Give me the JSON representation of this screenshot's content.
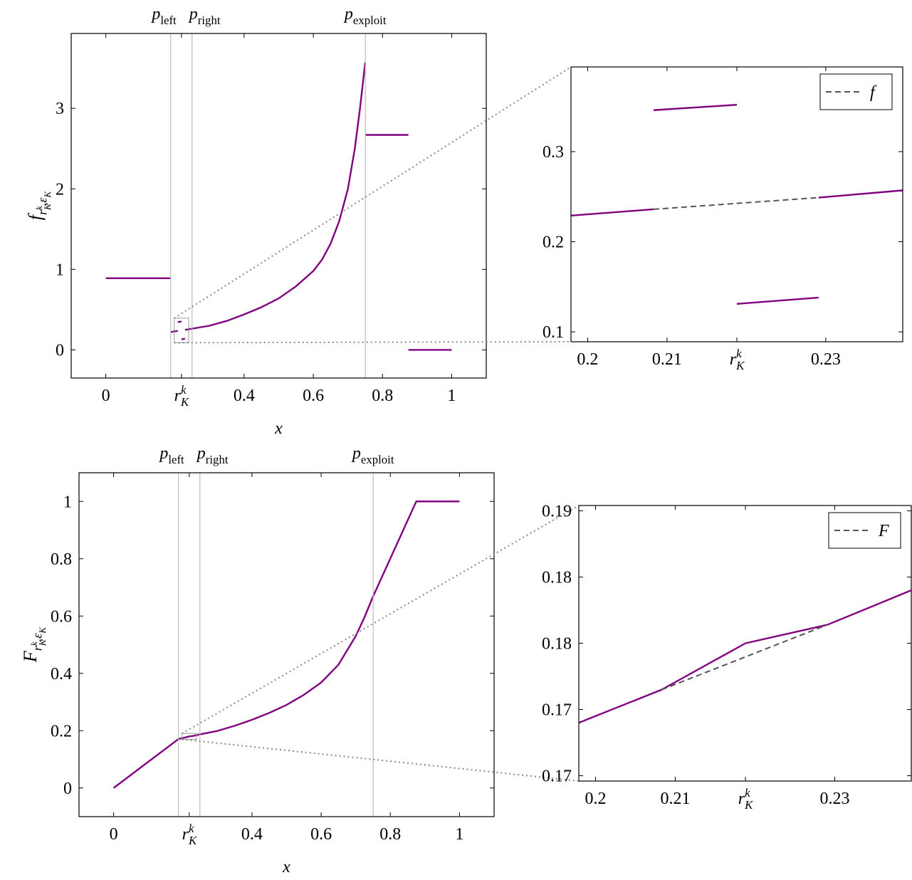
{
  "chart_data": [
    {
      "type": "line",
      "xlim": [
        -0.1,
        1.1
      ],
      "ylim": [
        -0.35,
        3.93
      ],
      "xticks": [
        0,
        {
          "value": 0.2188,
          "label": [
            {
              "text": "r"
            },
            {
              "text": "K",
              "pos": "sub"
            },
            {
              "text": "k",
              "pos": "sup"
            }
          ]
        },
        0.4,
        0.6,
        0.8,
        1
      ],
      "yticks": [
        0,
        1,
        2,
        3
      ],
      "xlabel": "x",
      "ylabel": [
        {
          "text": "f"
        },
        {
          "text": "r",
          "pos": "sub"
        },
        {
          "text": "K",
          "pos": "subsub"
        },
        {
          "text": "k",
          "pos": "subsup"
        },
        {
          "text": ",",
          "pos": "sub"
        },
        {
          "text": "ε",
          "pos": "sub"
        },
        {
          "text": "K",
          "pos": "subsub"
        }
      ],
      "vlines": [
        {
          "x": 0.1876,
          "label": [
            {
              "text": "p"
            },
            {
              "text": "left",
              "pos": "sub"
            }
          ]
        },
        {
          "x": 0.2495,
          "label": [
            {
              "text": "p"
            },
            {
              "text": "right",
              "pos": "sub"
            }
          ]
        },
        {
          "x": 0.7505,
          "label": [
            {
              "text": "p"
            },
            {
              "text": "exploit",
              "pos": "sub"
            }
          ]
        }
      ],
      "series": [
        {
          "color": "#800080",
          "x": [
            0,
            0.1876,
            0.1876,
            0.1876,
            0.2083,
            0.2083,
            0.2083,
            0.2188,
            0.2188,
            0.2188,
            0.2291,
            0.2291,
            0.2291,
            0.3,
            0.35,
            0.4,
            0.45,
            0.5,
            0.55,
            0.6,
            0.625,
            0.65,
            0.675,
            0.7,
            0.72,
            0.735,
            0.75,
            0.75,
            0.75,
            0.875,
            0.875,
            0.875,
            1
          ],
          "values": [
            0.89,
            0.89,
            null,
            0.222,
            0.236,
            null,
            0.346,
            0.352,
            null,
            0.131,
            0.138,
            null,
            0.249,
            0.3,
            0.36,
            0.44,
            0.53,
            0.64,
            0.79,
            0.98,
            1.12,
            1.32,
            1.6,
            2.0,
            2.5,
            3.0,
            3.57,
            null,
            2.67,
            2.67,
            null,
            0,
            0
          ]
        }
      ]
    },
    {
      "type": "line",
      "inset_of": 0,
      "xlim": [
        0.1979,
        0.2397
      ],
      "ylim": [
        0.089,
        0.394
      ],
      "xticks": [
        0.2,
        0.21,
        {
          "value": 0.2188,
          "label": [
            {
              "text": "r"
            },
            {
              "text": "K",
              "pos": "sub"
            },
            {
              "text": "k",
              "pos": "sup"
            }
          ]
        },
        0.23
      ],
      "yticks": [
        0.1,
        0.2,
        0.3
      ],
      "legend": "north east",
      "series": [
        {
          "color": "#800080",
          "x": [
            0.1979,
            0.2083,
            0.2083,
            0.2083,
            0.2188,
            0.2188,
            0.2188,
            0.2291,
            0.2291,
            0.2291,
            0.2397
          ],
          "values": [
            0.229,
            0.236,
            null,
            0.346,
            0.352,
            null,
            0.131,
            0.138,
            null,
            0.249,
            0.257
          ]
        },
        {
          "name": "f",
          "color": "#555555",
          "dashed": true,
          "x": [
            0.2083,
            0.2291
          ],
          "values": [
            0.236,
            0.249
          ]
        }
      ]
    },
    {
      "type": "line",
      "xlim": [
        -0.1,
        1.1
      ],
      "ylim": [
        -0.1,
        1.1
      ],
      "xticks": [
        0,
        {
          "value": 0.2188,
          "label": [
            {
              "text": "r"
            },
            {
              "text": "K",
              "pos": "sub"
            },
            {
              "text": "k",
              "pos": "sup"
            }
          ]
        },
        0.4,
        0.6,
        0.8,
        1
      ],
      "yticks": [
        0,
        0.2,
        0.4,
        0.6,
        0.8,
        1
      ],
      "xlabel": "x",
      "ylabel": [
        {
          "text": "F"
        },
        {
          "text": "r",
          "pos": "sub"
        },
        {
          "text": "K",
          "pos": "subsub"
        },
        {
          "text": "k",
          "pos": "subsup"
        },
        {
          "text": ",",
          "pos": "sub"
        },
        {
          "text": "ε",
          "pos": "sub"
        },
        {
          "text": "K",
          "pos": "subsub"
        }
      ],
      "vlines": [
        {
          "x": 0.1876,
          "label": [
            {
              "text": "p"
            },
            {
              "text": "left",
              "pos": "sub"
            }
          ]
        },
        {
          "x": 0.2495,
          "label": [
            {
              "text": "p"
            },
            {
              "text": "right",
              "pos": "sub"
            }
          ]
        },
        {
          "x": 0.7505,
          "label": [
            {
              "text": "p"
            },
            {
              "text": "exploit",
              "pos": "sub"
            }
          ]
        }
      ],
      "series": [
        {
          "color": "#800080",
          "x": [
            0,
            0.1876,
            0.2083,
            0.2188,
            0.2291,
            0.2495,
            0.3,
            0.35,
            0.4,
            0.45,
            0.5,
            0.55,
            0.6,
            0.65,
            0.7,
            0.725,
            0.75,
            0.875,
            1
          ],
          "values": [
            0,
            0.171,
            0.1765,
            0.18,
            0.1814,
            0.187,
            0.199,
            0.217,
            0.238,
            0.262,
            0.29,
            0.325,
            0.368,
            0.43,
            0.53,
            0.595,
            0.668,
            1,
            1
          ]
        }
      ]
    },
    {
      "type": "line",
      "inset_of": 2,
      "xlim": [
        0.1979,
        0.2396
      ],
      "ylim": [
        0.1696,
        0.1904
      ],
      "xticks": [
        0.2,
        0.21,
        {
          "value": 0.2188,
          "label": [
            {
              "text": "r"
            },
            {
              "text": "K",
              "pos": "sub"
            },
            {
              "text": "k",
              "pos": "sup"
            }
          ]
        },
        0.23
      ],
      "yticks": [
        0.17,
        {
          "value": 0.175,
          "label": "0.17"
        },
        0.18,
        {
          "value": 0.185,
          "label": "0.18"
        },
        0.19
      ],
      "legend": "north east",
      "series": [
        {
          "color": "#800080",
          "x": [
            0.1979,
            0.2083,
            0.2188,
            0.2291,
            0.2396
          ],
          "values": [
            0.174,
            0.1765,
            0.18,
            0.1814,
            0.184
          ]
        },
        {
          "name": "F",
          "color": "#555555",
          "dashed": true,
          "x": [
            0.2083,
            0.2291
          ],
          "values": [
            0.1765,
            0.1814
          ]
        }
      ]
    }
  ]
}
